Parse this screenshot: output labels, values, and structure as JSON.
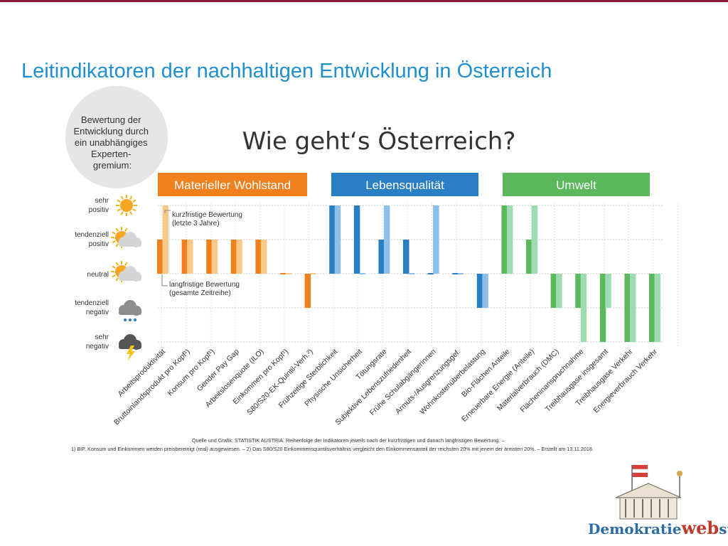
{
  "slide": {
    "title": "Leitindikatoren der nachhaltigen Entwicklung in Österreich"
  },
  "logo": {
    "part1": "Demokratie",
    "part2": "web",
    "part3": "statt"
  },
  "colors": {
    "title": "#1f8fd0",
    "materiell": "#f07f1e",
    "materiell_light": "#f9c98a",
    "lebens": "#2a7ec3",
    "lebens_light": "#8cc0ea",
    "umwelt": "#5cb85c",
    "umwelt_light": "#9ddcb3"
  },
  "chart_data": {
    "type": "bar",
    "title": "Wie geht‘s Österreich?",
    "expert_note": [
      "Bewertung der",
      "Entwicklung durch",
      "ein unabhängiges",
      "Experten-",
      "gremium:"
    ],
    "groups": [
      {
        "label": "Materieller Wohlstand",
        "color": "#f07f1e"
      },
      {
        "label": "Lebensqualität",
        "color": "#2a7ec3"
      },
      {
        "label": "Umwelt",
        "color": "#5cb85c"
      }
    ],
    "levels": [
      {
        "label": [
          "sehr",
          "positiv"
        ],
        "value": 2,
        "icon": "sun-icon"
      },
      {
        "label": [
          "tendenziell",
          "positiv"
        ],
        "value": 1,
        "icon": "sun-cloud-icon"
      },
      {
        "label": [
          "neutral"
        ],
        "value": 0,
        "icon": "cloud-sun-icon"
      },
      {
        "label": [
          "tendenziell",
          "negativ"
        ],
        "value": -1,
        "icon": "rain-cloud-icon"
      },
      {
        "label": [
          "sehr",
          "negativ"
        ],
        "value": -2,
        "icon": "storm-cloud-icon"
      }
    ],
    "ylim": [
      -2,
      2
    ],
    "legend": {
      "short": [
        "kurzfristige Bewertung",
        "(letzte 3 Jahre)"
      ],
      "long": [
        "langfristige Bewertung",
        "(gesamte Zeitreihe)"
      ]
    },
    "series": [
      {
        "key": "long",
        "values": [
          1,
          1,
          1,
          1,
          1,
          0,
          -1,
          2,
          2,
          1,
          1,
          0,
          0,
          -1,
          2,
          1,
          -1,
          -1,
          -2,
          -2,
          -2
        ]
      },
      {
        "key": "short",
        "values": [
          2,
          1,
          1,
          1,
          1,
          0,
          0,
          2,
          0,
          2,
          0,
          2,
          0,
          -1,
          2,
          2,
          -1,
          -2,
          -1,
          -2,
          -2
        ]
      }
    ],
    "categories": [
      {
        "label": "Arbeitsproduktivität",
        "group": 0
      },
      {
        "label": "Bruttoinlandsprodukt pro Kopf¹)",
        "group": 0
      },
      {
        "label": "Konsum pro Kopf¹)",
        "group": 0
      },
      {
        "label": "Gender Pay Gap",
        "group": 0
      },
      {
        "label": "Arbeitslosenquote (ILO)",
        "group": 0
      },
      {
        "label": "Einkommen pro Kopf¹)",
        "group": 0
      },
      {
        "label": "S80/S20-EK-Quintil-Verh.²)",
        "group": 0
      },
      {
        "label": "Frühzeitige Sterblichkeit",
        "group": 1
      },
      {
        "label": "Physische Unsicherheit",
        "group": 1
      },
      {
        "label": "Tötungsrate",
        "group": 1
      },
      {
        "label": "Subjektive Lebenszufriedenheit",
        "group": 1
      },
      {
        "label": "Frühe Schulabgängerinnen",
        "group": 1
      },
      {
        "label": "Armuts-/Ausgrenzungsgef.",
        "group": 1
      },
      {
        "label": "Wohnkostenüberbelastung",
        "group": 1
      },
      {
        "label": "Bio-Flächen Anteile",
        "group": 2
      },
      {
        "label": "Erneuerbare Energie (Anteile)",
        "group": 2
      },
      {
        "label": "Materialverbrauch (DMC)",
        "group": 2
      },
      {
        "label": "Flächeninanspruchnahme",
        "group": 2
      },
      {
        "label": "Treibhausgase insgesamt",
        "group": 2
      },
      {
        "label": "Treibhausgase Verkehr",
        "group": 2
      },
      {
        "label": "Energieverbrauch Verkehr",
        "group": 2
      }
    ],
    "source": "Quelle und Grafik: STATISTIK AUSTRIA. Reihenfolge der Indikatoren jeweils nach der kurzfristigen und danach langfristigen Bewertung. –",
    "footnote": "1) BIP, Konsum und Einkommen werden preisbereinigt (real) ausgewiesen. – 2) Das S80/S20 Einkommensquintilsverhältnis vergleicht den Einkommensanteil der reichsten 20% mit jenem der ärmsten 20%. – Erstellt am 13.11.2018."
  }
}
